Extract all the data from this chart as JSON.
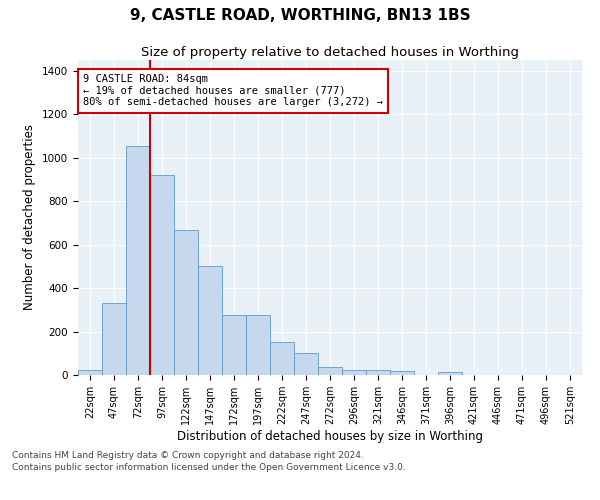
{
  "title": "9, CASTLE ROAD, WORTHING, BN13 1BS",
  "subtitle": "Size of property relative to detached houses in Worthing",
  "xlabel": "Distribution of detached houses by size in Worthing",
  "ylabel": "Number of detached properties",
  "categories": [
    "22sqm",
    "47sqm",
    "72sqm",
    "97sqm",
    "122sqm",
    "147sqm",
    "172sqm",
    "197sqm",
    "222sqm",
    "247sqm",
    "272sqm",
    "296sqm",
    "321sqm",
    "346sqm",
    "371sqm",
    "396sqm",
    "421sqm",
    "446sqm",
    "471sqm",
    "496sqm",
    "521sqm"
  ],
  "values": [
    22,
    330,
    1055,
    920,
    668,
    500,
    278,
    278,
    152,
    103,
    38,
    25,
    25,
    18,
    0,
    12,
    0,
    0,
    0,
    0,
    0
  ],
  "bar_color": "#c5d8ed",
  "bar_edge_color": "#5b9bd5",
  "bar_width": 1.0,
  "property_line_color": "#cc0000",
  "annotation_text": "9 CASTLE ROAD: 84sqm\n← 19% of detached houses are smaller (777)\n80% of semi-detached houses are larger (3,272) →",
  "annotation_box_color": "#cc0000",
  "ylim": [
    0,
    1450
  ],
  "yticks": [
    0,
    200,
    400,
    600,
    800,
    1000,
    1200,
    1400
  ],
  "background_color": "#e8f0f8",
  "grid_color": "#ffffff",
  "footer_line1": "Contains HM Land Registry data © Crown copyright and database right 2024.",
  "footer_line2": "Contains public sector information licensed under the Open Government Licence v3.0.",
  "title_fontsize": 11,
  "subtitle_fontsize": 9.5,
  "axis_label_fontsize": 8.5,
  "tick_fontsize": 7.5,
  "annotation_fontsize": 7.5,
  "footer_fontsize": 6.5
}
